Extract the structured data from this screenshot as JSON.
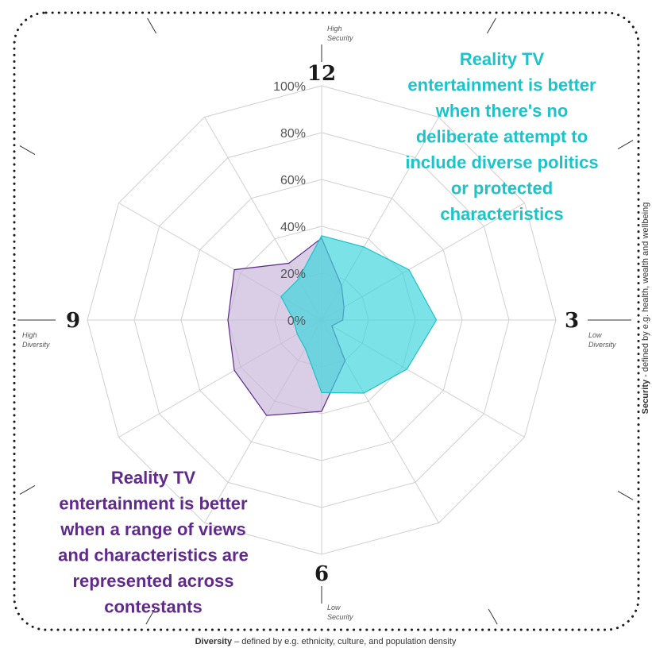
{
  "chart_data": {
    "type": "radar",
    "spokes": 12,
    "r_ticks": [
      "0%",
      "20%",
      "40%",
      "60%",
      "80%",
      "100%"
    ],
    "r_max": 100,
    "clock_labels": [
      {
        "position": 12,
        "text": "12"
      },
      {
        "position": 3,
        "text": "3"
      },
      {
        "position": 6,
        "text": "6"
      },
      {
        "position": 9,
        "text": "9"
      }
    ],
    "mini_labels": {
      "high_security": [
        "High",
        "Security"
      ],
      "low_security": [
        "Low",
        "Security"
      ],
      "high_diversity": [
        "High",
        "Diversity"
      ],
      "low_diversity": [
        "Low",
        "Diversity"
      ]
    },
    "series": [
      {
        "key": "diverse",
        "color": "#5b2a86",
        "fill": "#cbb8dc",
        "values": [
          35,
          17,
          11,
          9,
          5,
          20,
          39,
          47,
          43,
          40,
          43,
          28
        ]
      },
      {
        "key": "non_diverse",
        "color": "#19c3c9",
        "fill": "#3dd6dc",
        "values": [
          36,
          36,
          43,
          49,
          42,
          36,
          31,
          14,
          12,
          12,
          20,
          20
        ]
      }
    ],
    "annotations": {
      "non_diverse": [
        "Reality TV",
        "entertainment is better",
        "when there's no",
        "deliberate attempt to",
        "include diverse politics",
        "or protected",
        "characteristics"
      ],
      "diverse": [
        "Reality TV",
        "entertainment is better",
        "when a range of views",
        "and characteristics are",
        "represented across",
        "contestants"
      ]
    },
    "x_axis_caption": {
      "bold": "Diversity",
      "rest": " – defined by e.g. ethnicity, culture, and population density"
    },
    "y_axis_caption": {
      "bold": "Security",
      "rest": " - defined by e.g. health, wealth and wellbeing"
    }
  }
}
